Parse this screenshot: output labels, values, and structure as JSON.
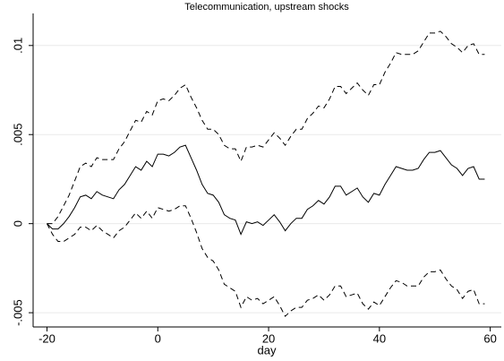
{
  "chart_data": {
    "type": "line",
    "title": "Telecommunication, upstream shocks",
    "xlabel": "day",
    "x": [
      -20,
      -19,
      -18,
      -17,
      -16,
      -15,
      -14,
      -13,
      -12,
      -11,
      -10,
      -9,
      -8,
      -7,
      -6,
      -5,
      -4,
      -3,
      -2,
      -1,
      0,
      1,
      2,
      3,
      4,
      5,
      6,
      7,
      8,
      9,
      10,
      11,
      12,
      13,
      14,
      15,
      16,
      17,
      18,
      19,
      20,
      21,
      22,
      23,
      24,
      25,
      26,
      27,
      28,
      29,
      30,
      31,
      32,
      33,
      34,
      35,
      36,
      37,
      38,
      39,
      40,
      41,
      42,
      43,
      44,
      45,
      46,
      47,
      48,
      49,
      50,
      51,
      52,
      53,
      54,
      55,
      56,
      57,
      58,
      59
    ],
    "series": [
      {
        "color": "#000000",
        "dashed": false,
        "values": [
          0,
          -0.0003,
          -0.0003,
          0,
          0.0004,
          0.0009,
          0.0015,
          0.0016,
          0.0014,
          0.0018,
          0.0016,
          0.0015,
          0.0014,
          0.0019,
          0.0022,
          0.0027,
          0.0032,
          0.003,
          0.0035,
          0.0032,
          0.0039,
          0.0039,
          0.0038,
          0.004,
          0.0043,
          0.0044,
          0.0037,
          0.003,
          0.0022,
          0.0017,
          0.0016,
          0.0012,
          0.0005,
          0.0003,
          0.0002,
          -0.0006,
          0.0001,
          0,
          0.0001,
          -0.0001,
          0.0002,
          0.0005,
          0.0001,
          -0.0004,
          0,
          0.0003,
          0.0003,
          0.0008,
          0.001,
          0.0013,
          0.0011,
          0.0015,
          0.0021,
          0.0021,
          0.0016,
          0.0018,
          0.002,
          0.0015,
          0.0012,
          0.0017,
          0.0016,
          0.0022,
          0.0027,
          0.0032,
          0.0031,
          0.003,
          0.003,
          0.0031,
          0.0036,
          0.004,
          0.004,
          0.0041,
          0.0037,
          0.0033,
          0.0031,
          0.0027,
          0.0031,
          0.0032,
          0.0025,
          0.0025
        ]
      },
      {
        "color": "#000000",
        "dashed": true,
        "values": [
          0,
          0,
          0.0004,
          0.001,
          0.0016,
          0.0024,
          0.0032,
          0.0034,
          0.0032,
          0.0037,
          0.0036,
          0.0036,
          0.0036,
          0.0042,
          0.0046,
          0.0052,
          0.0058,
          0.0057,
          0.0063,
          0.0061,
          0.0069,
          0.007,
          0.0069,
          0.0072,
          0.0076,
          0.0078,
          0.0071,
          0.0065,
          0.0058,
          0.0053,
          0.0053,
          0.005,
          0.0044,
          0.0042,
          0.0042,
          0.0035,
          0.0043,
          0.0043,
          0.0044,
          0.0043,
          0.0047,
          0.0051,
          0.0048,
          0.0044,
          0.0049,
          0.0053,
          0.0053,
          0.0059,
          0.0062,
          0.0066,
          0.0065,
          0.007,
          0.0077,
          0.0077,
          0.0073,
          0.0076,
          0.0079,
          0.0075,
          0.0072,
          0.0078,
          0.0078,
          0.0085,
          0.009,
          0.0096,
          0.0095,
          0.0095,
          0.0095,
          0.0097,
          0.0102,
          0.0107,
          0.0107,
          0.0108,
          0.0105,
          0.0101,
          0.0099,
          0.0096,
          0.01,
          0.0101,
          0.0095,
          0.0095
        ]
      },
      {
        "color": "#000000",
        "dashed": true,
        "values": [
          0,
          -0.0006,
          -0.001,
          -0.001,
          -0.0008,
          -0.0006,
          -0.0002,
          -0.0002,
          -0.0004,
          -0.0001,
          -0.0004,
          -0.0006,
          -0.0008,
          -0.0004,
          -0.0002,
          0.0002,
          0.0006,
          0.0003,
          0.0007,
          0.0003,
          0.0009,
          0.0008,
          0.0007,
          0.0008,
          0.001,
          0.001,
          0.0003,
          -0.0005,
          -0.0014,
          -0.0019,
          -0.0021,
          -0.0026,
          -0.0034,
          -0.0036,
          -0.0038,
          -0.0047,
          -0.0041,
          -0.0043,
          -0.0042,
          -0.0045,
          -0.0043,
          -0.0041,
          -0.0046,
          -0.0052,
          -0.0049,
          -0.0047,
          -0.0047,
          -0.0043,
          -0.0042,
          -0.004,
          -0.0043,
          -0.004,
          -0.0035,
          -0.0035,
          -0.0041,
          -0.004,
          -0.0039,
          -0.0045,
          -0.0048,
          -0.0044,
          -0.0046,
          -0.0041,
          -0.0036,
          -0.0032,
          -0.0033,
          -0.0035,
          -0.0035,
          -0.0035,
          -0.003,
          -0.0027,
          -0.0027,
          -0.0026,
          -0.0031,
          -0.0035,
          -0.0037,
          -0.0042,
          -0.0038,
          -0.0037,
          -0.0045,
          -0.0045
        ]
      }
    ],
    "xlim": [
      -22.5,
      62
    ],
    "xticks": [
      -20,
      0,
      20,
      40,
      60
    ],
    "ylim": [
      -0.0058,
      0.0118
    ],
    "yticks": [
      {
        "value": -0.005,
        "label": "-.005"
      },
      0,
      {
        "value": 0.005,
        "label": ".005"
      },
      {
        "value": 0.01,
        "label": ".01"
      }
    ],
    "grid": true
  }
}
